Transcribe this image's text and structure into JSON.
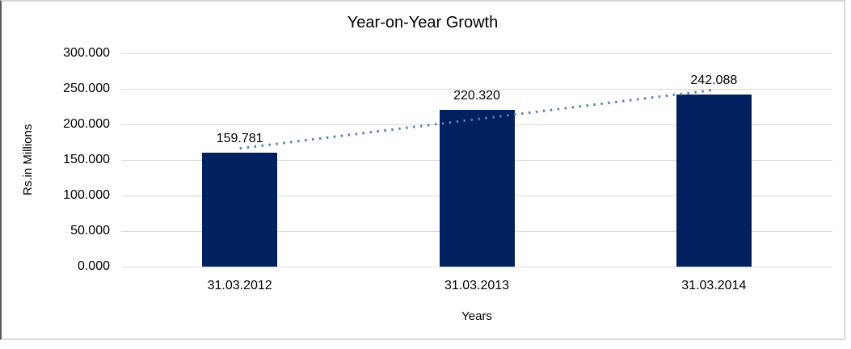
{
  "chart_data": {
    "type": "bar",
    "title": "Year-on-Year Growth",
    "xlabel": "Years",
    "ylabel": "Rs.in Millions",
    "categories": [
      "31.03.2012",
      "31.03.2013",
      "31.03.2014"
    ],
    "values": [
      159.781,
      220.32,
      242.088
    ],
    "value_labels": [
      "159.781",
      "220.320",
      "242.088"
    ],
    "ylim": [
      0,
      300
    ],
    "ytick_step": 50,
    "ytick_decimals": 3,
    "grid": true,
    "legend": "none",
    "trendline": {
      "type": "linear",
      "style": "dotted"
    },
    "colors": {
      "bar": "#002060",
      "trendline": "#4f81bd",
      "gridline": "#d9d9d9",
      "text": "#000000",
      "frame_border": "#d9d9d9",
      "frame_left_border": "#595959"
    }
  }
}
